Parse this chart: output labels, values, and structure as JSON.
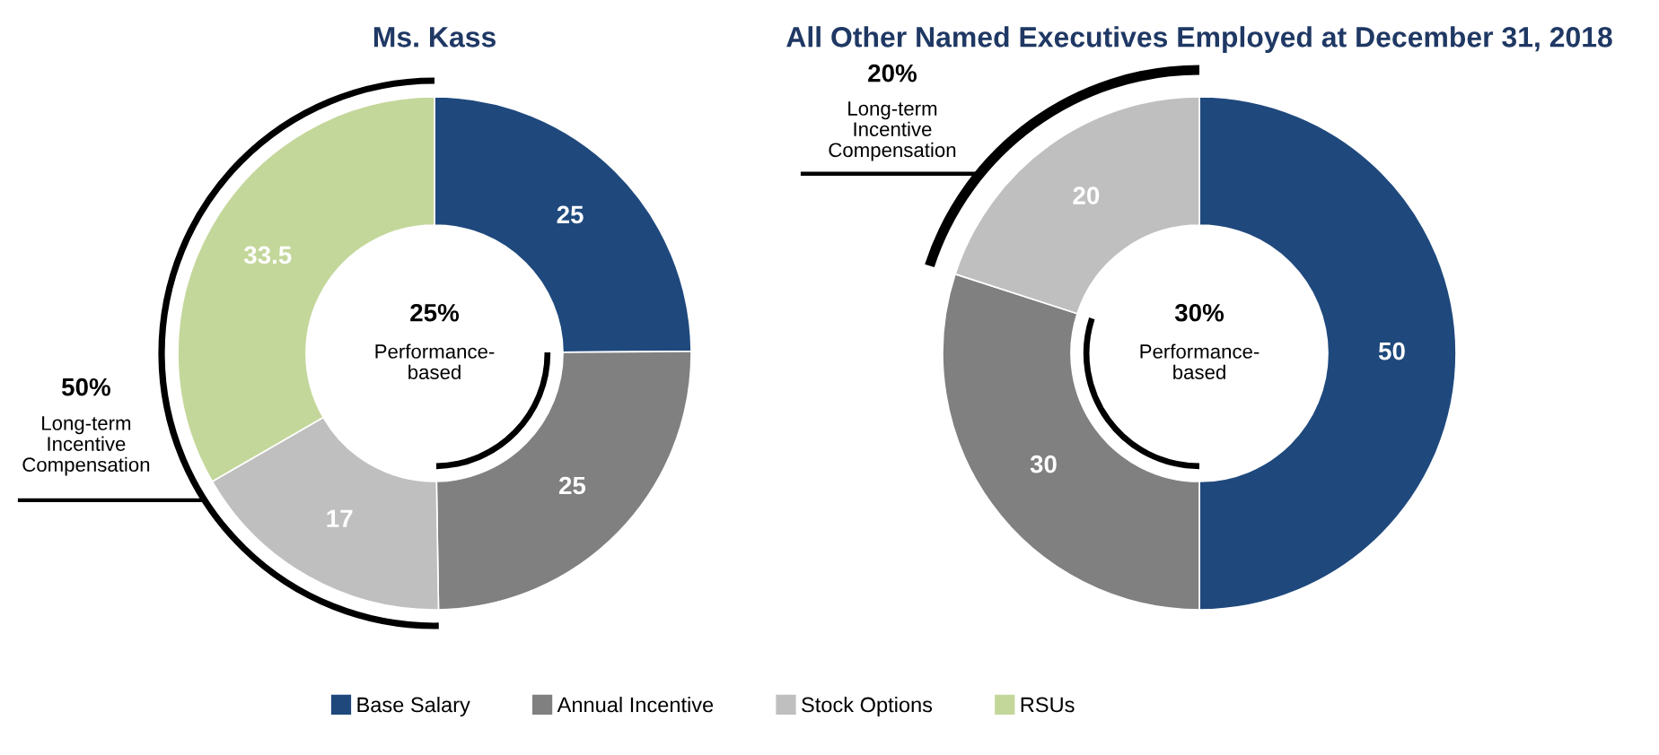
{
  "chart_data": [
    {
      "type": "donut",
      "title": "Ms. Kass",
      "categories": [
        "Base Salary",
        "Annual Incentive",
        "Stock Options",
        "RSUs"
      ],
      "values": [
        25,
        25,
        17,
        33.5
      ],
      "colors": [
        "#1f497d",
        "#808080",
        "#bfbfbf",
        "#c4d79b"
      ],
      "data_labels": true,
      "legend": "bottom",
      "annotations": [
        "25%\nPerformance-\nbased",
        "50%\nLong-term\nIncentive\nCompensation"
      ]
    },
    {
      "type": "donut",
      "title": "All Other Named Executives Employed at December 31, 2018",
      "categories": [
        null,
        null,
        null
      ],
      "values": [
        50,
        30,
        20
      ],
      "colors": [
        "#1f497d",
        "#808080",
        "#bfbfbf"
      ],
      "data_labels": true,
      "annotations": [
        "30%\nPerformance-\nbased",
        "20%\nLong-term\nIncentive\nCompensation"
      ]
    }
  ]
}
